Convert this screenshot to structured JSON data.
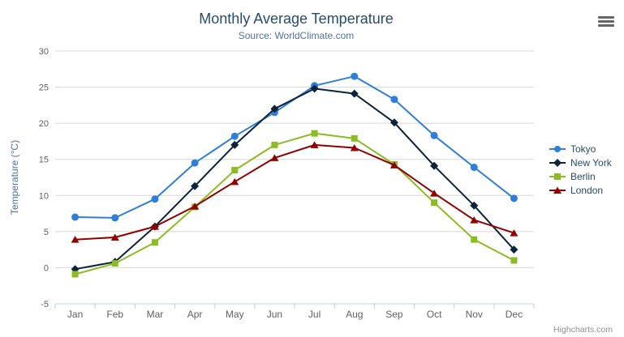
{
  "style": {
    "background": "#ffffff",
    "title_color": "#274b6d",
    "subtitle_color": "#4d759e",
    "axis_title_color": "#4d759e",
    "tick_label_color": "#606060",
    "grid_line_color": "#d8d8d8",
    "axis_line_color": "#c0d0e0",
    "legend_text_color": "#274b6d",
    "credits_color": "#909090",
    "context_button_color": "#666666"
  },
  "credits": {
    "label": "Highcharts.com"
  },
  "context_menu": {
    "icon": "hamburger-icon"
  },
  "chart_data": {
    "type": "line",
    "title": "Monthly Average Temperature",
    "subtitle": "Source: WorldClimate.com",
    "categories": [
      "Jan",
      "Feb",
      "Mar",
      "Apr",
      "May",
      "Jun",
      "Jul",
      "Aug",
      "Sep",
      "Oct",
      "Nov",
      "Dec"
    ],
    "xlabel": "",
    "ylabel": "Temperature (°C)",
    "ylim": [
      -5,
      30
    ],
    "ytick_interval": 5,
    "yticks": [
      -5,
      0,
      5,
      10,
      15,
      20,
      25,
      30
    ],
    "grid": true,
    "legend_position": "right",
    "series": [
      {
        "name": "Tokyo",
        "color": "#2f7ed8",
        "marker": "circle",
        "values": [
          7.0,
          6.9,
          9.5,
          14.5,
          18.2,
          21.5,
          25.2,
          26.5,
          23.3,
          18.3,
          13.9,
          9.6
        ]
      },
      {
        "name": "New York",
        "color": "#0d233a",
        "marker": "diamond",
        "values": [
          -0.2,
          0.8,
          5.7,
          11.3,
          17.0,
          22.0,
          24.8,
          24.1,
          20.1,
          14.1,
          8.6,
          2.5
        ]
      },
      {
        "name": "Berlin",
        "color": "#8bbc21",
        "marker": "square",
        "values": [
          -0.9,
          0.6,
          3.5,
          8.4,
          13.5,
          17.0,
          18.6,
          17.9,
          14.3,
          9.0,
          3.9,
          1.0
        ]
      },
      {
        "name": "London",
        "color": "#910000",
        "marker": "triangle",
        "values": [
          3.9,
          4.2,
          5.7,
          8.5,
          11.9,
          15.2,
          17.0,
          16.6,
          14.2,
          10.3,
          6.6,
          4.8
        ]
      }
    ]
  }
}
